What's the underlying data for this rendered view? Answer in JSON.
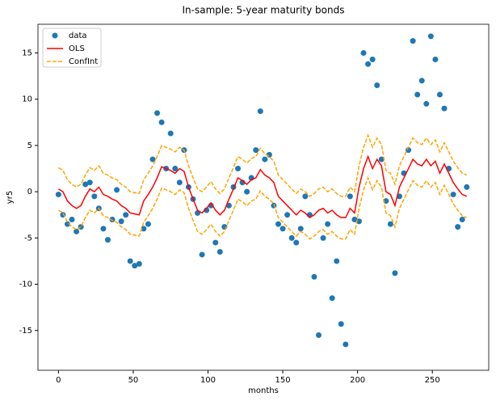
{
  "chart_data": {
    "type": "line",
    "title": "In-sample: 5-year maturity bonds",
    "x_label": "months",
    "y_label": "yr5",
    "x": [
      0,
      3,
      6,
      9,
      12,
      15,
      18,
      21,
      24,
      27,
      30,
      33,
      36,
      39,
      42,
      45,
      48,
      51,
      54,
      57,
      60,
      63,
      66,
      69,
      72,
      75,
      78,
      81,
      84,
      87,
      90,
      93,
      96,
      99,
      102,
      105,
      108,
      111,
      114,
      117,
      120,
      123,
      126,
      129,
      132,
      135,
      138,
      141,
      144,
      147,
      150,
      153,
      156,
      159,
      162,
      165,
      168,
      171,
      174,
      177,
      180,
      183,
      186,
      189,
      192,
      195,
      198,
      201,
      204,
      207,
      210,
      213,
      216,
      219,
      222,
      225,
      228,
      231,
      234,
      237,
      240,
      243,
      246,
      249,
      252,
      255,
      258,
      261,
      264,
      267,
      270,
      273
    ],
    "series": [
      {
        "name": "data",
        "style": "scatter",
        "color": "#1f77b4",
        "values": [
          -0.3,
          -2.5,
          -3.5,
          -3,
          -4.3,
          -3.8,
          0.8,
          1,
          -0.5,
          -1.8,
          -4,
          -5.2,
          -3,
          0.2,
          -3.2,
          -2.5,
          -7.5,
          -8,
          -7.8,
          -4,
          -3.5,
          3.5,
          8.5,
          7.5,
          2.5,
          6.3,
          2.5,
          1,
          4.5,
          0.5,
          -0.8,
          -2.3,
          -6.8,
          -2,
          -1.5,
          -5.5,
          -6.5,
          -3.8,
          -1.5,
          0.5,
          2.5,
          1,
          0,
          1.5,
          4.5,
          8.7,
          3.5,
          4,
          -1.5,
          -3.5,
          -4,
          -2.5,
          -5,
          -5.5,
          -4,
          -0.5,
          -2.5,
          -9.2,
          -15.5,
          -5,
          -3.5,
          -11.5,
          -7.5,
          -14.3,
          -16.5,
          -0.5,
          -3,
          -3.2,
          15,
          13.8,
          14.3,
          11.5,
          3.5,
          -1,
          -3.5,
          -8.8,
          -0.5,
          2,
          4.5,
          16.3,
          10.5,
          12,
          9.5,
          16.8,
          14.3,
          10.5,
          9,
          2.5,
          -0.3,
          -3.8,
          -3,
          0.5
        ]
      },
      {
        "name": "OLS",
        "style": "solid",
        "color": "#ff0000",
        "values": [
          0.3,
          0,
          -1,
          -1.5,
          -1.8,
          -1.5,
          -0.5,
          0.3,
          0,
          0.5,
          -0.3,
          -0.5,
          -0.8,
          -1,
          -1.5,
          -1.8,
          -2.3,
          -2.4,
          -2.5,
          -1,
          -0.3,
          0.5,
          1.5,
          2.7,
          2.5,
          2.3,
          2,
          2.5,
          2.2,
          0.5,
          -0.8,
          -2,
          -2.3,
          -1.8,
          -1.2,
          -2,
          -2.5,
          -2,
          -0.8,
          0.3,
          1.5,
          1.2,
          0.8,
          1.3,
          1.5,
          2.4,
          1.8,
          1.5,
          1,
          -0.5,
          -1,
          -1.5,
          -2,
          -2.5,
          -2,
          -2.3,
          -2.8,
          -2.5,
          -2,
          -1.8,
          -2.3,
          -2,
          -2.5,
          -2.8,
          -2.8,
          -1.8,
          -2.3,
          0.5,
          2.5,
          3.8,
          2.5,
          3.5,
          2.8,
          0,
          -0.3,
          -1.5,
          0.5,
          1.5,
          2.5,
          3.5,
          3,
          2.8,
          3.5,
          2.8,
          3.3,
          2,
          3,
          2,
          1,
          0.3,
          -0.3,
          -0.5
        ]
      },
      {
        "name": "ConfInt",
        "style": "dashed",
        "color": "#ffa500",
        "values": [
          2.6,
          2.3,
          1.3,
          0.8,
          0.5,
          0.8,
          1.8,
          2.6,
          2.3,
          2.8,
          2,
          1.8,
          1.5,
          1.3,
          0.8,
          0.5,
          0,
          -0.1,
          -0.2,
          1.3,
          2,
          2.8,
          3.8,
          5,
          4.8,
          4.6,
          4.3,
          4.8,
          4.5,
          2.8,
          1.5,
          0.3,
          0,
          0.5,
          1.1,
          0.3,
          -0.2,
          0.3,
          1.5,
          2.6,
          3.8,
          3.5,
          3.1,
          3.6,
          3.8,
          4.7,
          4.1,
          3.8,
          3.3,
          1.8,
          1.3,
          0.8,
          0.3,
          -0.2,
          0.3,
          0,
          -0.5,
          -0.2,
          0.3,
          0.5,
          0,
          0.3,
          -0.2,
          -0.5,
          -0.5,
          0.5,
          0,
          2.8,
          4.8,
          6.1,
          4.8,
          5.8,
          5.1,
          2.3,
          2,
          0.8,
          2.8,
          3.8,
          4.8,
          5.8,
          5.3,
          5.1,
          5.8,
          5.1,
          5.6,
          4.3,
          5.3,
          4.3,
          3.3,
          2.6,
          2,
          1.8
        ],
        "lower": [
          -2,
          -2.3,
          -3.3,
          -3.8,
          -4.1,
          -3.8,
          -2.8,
          -2,
          -2.3,
          -1.8,
          -2.6,
          -2.8,
          -3.1,
          -3.3,
          -3.8,
          -4.1,
          -4.6,
          -4.7,
          -4.8,
          -3.3,
          -2.6,
          -1.8,
          -0.8,
          0.4,
          0.2,
          0,
          -0.3,
          0.2,
          -0.1,
          -1.8,
          -3.1,
          -4.3,
          -4.6,
          -4.1,
          -3.5,
          -4.3,
          -4.8,
          -4.3,
          -3.1,
          -2,
          -0.8,
          -1.1,
          -1.5,
          -1,
          -0.8,
          0.1,
          -0.5,
          -0.8,
          -1.3,
          -2.8,
          -3.3,
          -3.8,
          -4.3,
          -4.8,
          -4.3,
          -4.6,
          -5.1,
          -4.8,
          -4.3,
          -4.1,
          -4.6,
          -4.3,
          -4.8,
          -5.1,
          -5.1,
          -4.1,
          -4.6,
          -1.8,
          0.2,
          1.5,
          0.2,
          1.2,
          0.5,
          -2.3,
          -2.6,
          -3.8,
          -1.8,
          -0.8,
          0.2,
          1.2,
          0.7,
          0.5,
          1.2,
          0.5,
          1,
          -0.3,
          0.7,
          -0.3,
          -1.3,
          -2,
          -2.6,
          -2.8
        ]
      }
    ],
    "xlim": [
      -13.7,
      287.7
    ],
    "ylim": [
      -19.3,
      18.1
    ],
    "xticks": [
      0,
      50,
      100,
      150,
      200,
      250
    ],
    "yticks": [
      -15,
      -10,
      -5,
      0,
      5,
      10,
      15
    ],
    "grid": false,
    "legend": "upper left"
  }
}
